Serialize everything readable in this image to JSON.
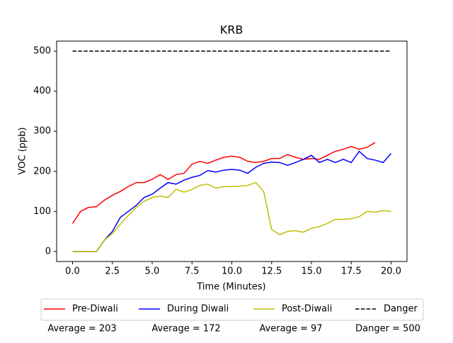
{
  "chart_data": {
    "type": "line",
    "title": "KRB",
    "x_label": "Time (Minutes)",
    "y_label": "VOC (ppb)",
    "x": [
      0,
      0.5,
      1,
      1.5,
      2,
      2.5,
      3,
      3.5,
      4,
      4.5,
      5,
      5.5,
      6,
      6.5,
      7,
      7.5,
      8,
      8.5,
      9,
      9.5,
      10,
      10.5,
      11,
      11.5,
      12,
      12.5,
      13,
      13.5,
      14,
      14.5,
      15,
      15.5,
      16,
      16.5,
      17,
      17.5,
      18,
      18.5,
      19,
      19.5,
      20
    ],
    "series": [
      {
        "name": "Pre-Diwali",
        "color": "#ff0000",
        "dash": false,
        "values": [
          70,
          100,
          110,
          112,
          128,
          140,
          150,
          162,
          172,
          172,
          180,
          192,
          180,
          192,
          195,
          218,
          225,
          220,
          228,
          235,
          238,
          235,
          225,
          222,
          225,
          232,
          232,
          242,
          235,
          230,
          232,
          230,
          240,
          250,
          255,
          262,
          255,
          260,
          272,
          null,
          null
        ]
      },
      {
        "name": "During Diwali",
        "color": "#0000ff",
        "dash": false,
        "values": [
          0,
          0,
          0,
          0,
          28,
          50,
          85,
          100,
          115,
          135,
          143,
          158,
          172,
          168,
          178,
          185,
          190,
          202,
          198,
          203,
          205,
          203,
          195,
          210,
          220,
          223,
          222,
          215,
          222,
          230,
          240,
          222,
          230,
          222,
          230,
          222,
          250,
          232,
          228,
          222,
          245
        ]
      },
      {
        "name": "Post-Diwali",
        "color": "#bfbf00",
        "dash": false,
        "values": [
          0,
          0,
          0,
          0,
          28,
          45,
          68,
          90,
          110,
          125,
          135,
          138,
          135,
          155,
          148,
          155,
          165,
          168,
          158,
          162,
          162,
          163,
          165,
          172,
          150,
          55,
          42,
          50,
          52,
          48,
          58,
          62,
          70,
          80,
          80,
          82,
          87,
          100,
          98,
          102,
          100
        ]
      },
      {
        "name": "Danger",
        "color": "#000000",
        "dash": true,
        "values": [
          500,
          500,
          500,
          500,
          500,
          500,
          500,
          500,
          500,
          500,
          500,
          500,
          500,
          500,
          500,
          500,
          500,
          500,
          500,
          500,
          500,
          500,
          500,
          500,
          500,
          500,
          500,
          500,
          500,
          500,
          500,
          500,
          500,
          500,
          500,
          500,
          500,
          500,
          500,
          500,
          500
        ]
      }
    ],
    "xlim": [
      -1,
      21
    ],
    "ylim": [
      -25,
      525
    ],
    "xticks": [
      {
        "value": 0,
        "label": "0.0"
      },
      2.5,
      {
        "value": 5,
        "label": "5.0"
      },
      7.5,
      {
        "value": 10,
        "label": "10.0"
      },
      12.5,
      {
        "value": 15,
        "label": "15.0"
      },
      17.5,
      {
        "value": 20,
        "label": "20.0"
      }
    ],
    "yticks": [
      0,
      100,
      200,
      300,
      400,
      500
    ],
    "legend": "bottom",
    "annotations": [
      "Average = 203",
      "Average = 172",
      "Average = 97",
      "Danger = 500"
    ]
  }
}
